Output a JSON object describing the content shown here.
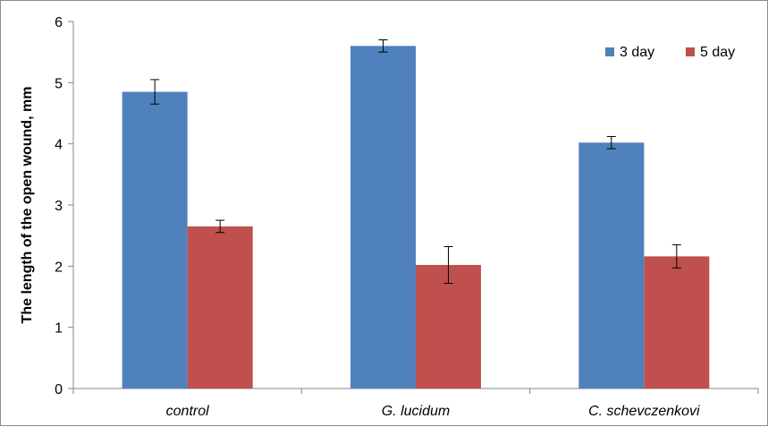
{
  "chart_data": {
    "type": "bar",
    "title": "",
    "xlabel": "",
    "ylabel": "The length of the open wound, mm",
    "ylim": [
      0,
      6
    ],
    "yticks": [
      0,
      1,
      2,
      3,
      4,
      5,
      6
    ],
    "grid": false,
    "legend_position": "top-right",
    "categories": [
      "control",
      "G. lucidum",
      "C. schevczenkovi"
    ],
    "series": [
      {
        "name": "3 day",
        "color": "#4f81bd",
        "values": [
          4.85,
          5.6,
          4.02
        ],
        "errors": [
          0.2,
          0.1,
          0.1
        ]
      },
      {
        "name": "5 day",
        "color": "#c0504d",
        "values": [
          2.65,
          2.02,
          2.16
        ],
        "errors": [
          0.1,
          0.3,
          0.19
        ]
      }
    ]
  }
}
